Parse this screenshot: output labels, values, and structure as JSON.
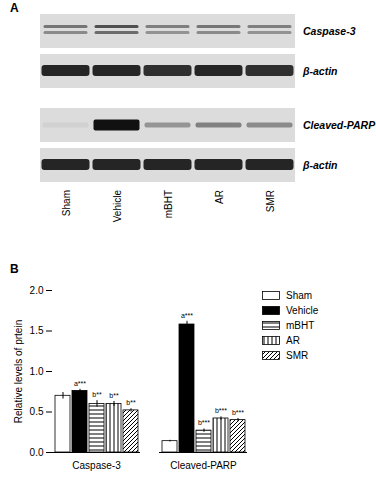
{
  "panel_labels": [
    "A",
    "B"
  ],
  "blot": {
    "row_labels": [
      "Caspase-3",
      "β-actin",
      "Cleaved-PARP",
      "β-actin"
    ],
    "lanes": [
      "Sham",
      "Vehicle",
      "mBHT",
      "AR",
      "SMR"
    ]
  },
  "chart_data": {
    "type": "bar",
    "y_label": "Relative levels of prtein",
    "categories": [
      "Caspase-3",
      "Cleaved-PARP"
    ],
    "series": [
      {
        "name": "Sham",
        "color": "#ffffff",
        "values": [
          0.7,
          0.14
        ],
        "errors": [
          0.04,
          0.01
        ],
        "annotations": [
          null,
          null
        ]
      },
      {
        "name": "Vehicle",
        "color": "#000000",
        "values": [
          0.76,
          1.58
        ],
        "errors": [
          0.02,
          0.04
        ],
        "annotations": [
          "a***",
          "a***"
        ]
      },
      {
        "name": "mBHT",
        "color": "#ffffff",
        "values": [
          0.6,
          0.27
        ],
        "errors": [
          0.04,
          0.02
        ],
        "annotations": [
          "b**",
          "b***"
        ]
      },
      {
        "name": "AR",
        "color": "#ffffff",
        "values": [
          0.6,
          0.42
        ],
        "errors": [
          0.03,
          0.02
        ],
        "annotations": [
          "b**",
          "b***"
        ]
      },
      {
        "name": "SMR",
        "color": "#ffffff",
        "values": [
          0.52,
          0.4
        ],
        "errors": [
          0.02,
          0.02
        ],
        "annotations": [
          "b**",
          "b***"
        ]
      }
    ],
    "ylim": [
      0,
      2.0
    ],
    "yticks": [
      {
        "value": 0,
        "label": "0.0"
      },
      {
        "value": 0.5,
        "label": "0.5"
      },
      {
        "value": 1.0,
        "label": "1.0"
      },
      {
        "value": 1.5,
        "label": "1.5"
      },
      {
        "value": 2.0,
        "label": "2.0"
      }
    ],
    "legend": "right",
    "grid": false
  }
}
